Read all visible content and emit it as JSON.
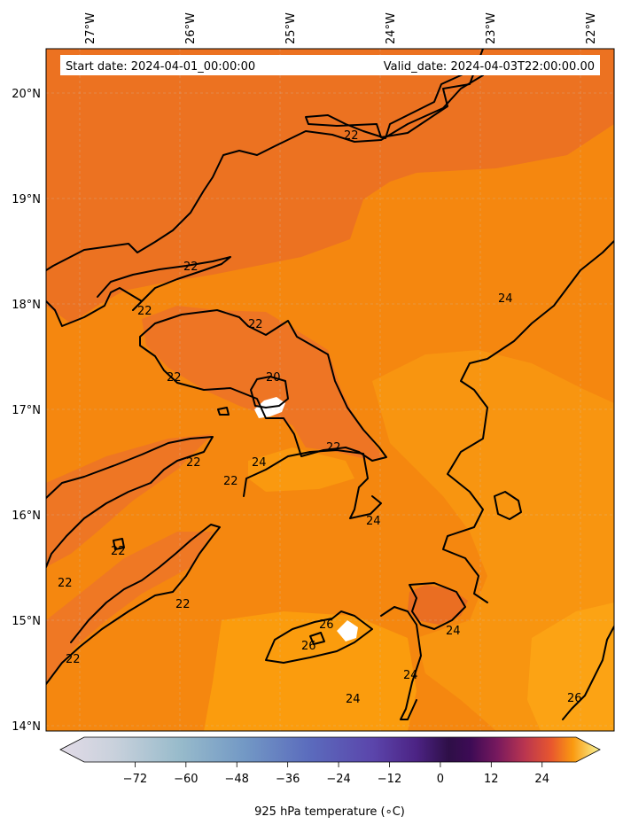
{
  "map": {
    "start_label": "Start date: 2024-04-01_00:00:00",
    "valid_label": "Valid_date: 2024-04-03T22:00:00.00",
    "lon_ticks": [
      "27°W",
      "26°W",
      "25°W",
      "24°W",
      "23°W",
      "22°W"
    ],
    "lat_ticks": [
      "20°N",
      "19°N",
      "18°N",
      "17°N",
      "16°N",
      "15°N",
      "14°N"
    ],
    "contour_labels": [
      "20",
      "22",
      "22",
      "22",
      "22",
      "22",
      "22",
      "22",
      "22",
      "22",
      "22",
      "22",
      "22",
      "24",
      "24",
      "24",
      "24",
      "24",
      "24",
      "26",
      "26",
      "26"
    ],
    "colors": {
      "warm_base": "#f5870f",
      "darker": "#ec7221",
      "lighter": "#fb9c0d",
      "missing": "#ffffff"
    }
  },
  "colorbar": {
    "title": "925 hPa temperature (∘C)",
    "tick_labels": [
      "−72",
      "−60",
      "−48",
      "−36",
      "−24",
      "−12",
      "0",
      "12",
      "24"
    ],
    "range": [
      -84,
      32
    ],
    "ticks": [
      -72,
      -60,
      -48,
      -36,
      -24,
      -12,
      0,
      12,
      24
    ],
    "colormap": "inferno-twilight"
  }
}
